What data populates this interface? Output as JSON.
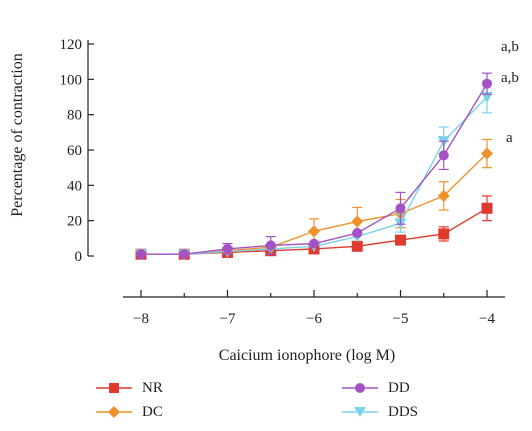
{
  "chart_data": {
    "type": "line",
    "xlabel": "Caicium ionophore (log M)",
    "ylabel": "Percentage of contraction",
    "xlim": [
      -8,
      -4
    ],
    "ylim": [
      0,
      120
    ],
    "x_ticks": [
      "−8",
      "−7",
      "−6",
      "−5",
      "−4"
    ],
    "y_ticks": [
      "0",
      "20",
      "40",
      "60",
      "80",
      "100",
      "120"
    ],
    "x": [
      -8,
      -7.5,
      -7,
      -6.5,
      -6,
      -5.5,
      -5,
      -4.5,
      -4
    ],
    "series": [
      {
        "name": "NR",
        "color": "#e03a2e",
        "marker": "square",
        "values": [
          1,
          1,
          2,
          3,
          4,
          5.5,
          9,
          12.5,
          27
        ],
        "errors": [
          0,
          0,
          0,
          0,
          0,
          0,
          0,
          4,
          7
        ]
      },
      {
        "name": "DC",
        "color": "#f0922a",
        "marker": "diamond",
        "values": [
          1,
          1,
          3,
          5,
          14,
          19.5,
          24,
          34,
          58
        ],
        "errors": [
          0,
          0,
          0,
          0,
          7,
          8,
          8,
          8,
          8
        ]
      },
      {
        "name": "DD",
        "color": "#a453c4",
        "marker": "circle",
        "values": [
          1,
          1,
          4,
          6,
          7,
          13,
          27,
          57,
          97.5
        ],
        "errors": [
          0,
          0,
          3,
          5,
          0,
          0,
          9,
          8,
          6
        ]
      },
      {
        "name": "DDS",
        "color": "#78d3ea",
        "marker": "triangle-down",
        "values": [
          1,
          1,
          2.5,
          4,
          5.5,
          11,
          18.5,
          65,
          90
        ],
        "errors": [
          0,
          0,
          0,
          0,
          0,
          0,
          5,
          8,
          9
        ]
      }
    ],
    "annotations": [
      {
        "text": "a,b",
        "series": "DD"
      },
      {
        "text": "a,b",
        "series": "DDS"
      },
      {
        "text": "a",
        "series": "DC"
      }
    ],
    "grid": false,
    "legend_position": "bottom"
  }
}
